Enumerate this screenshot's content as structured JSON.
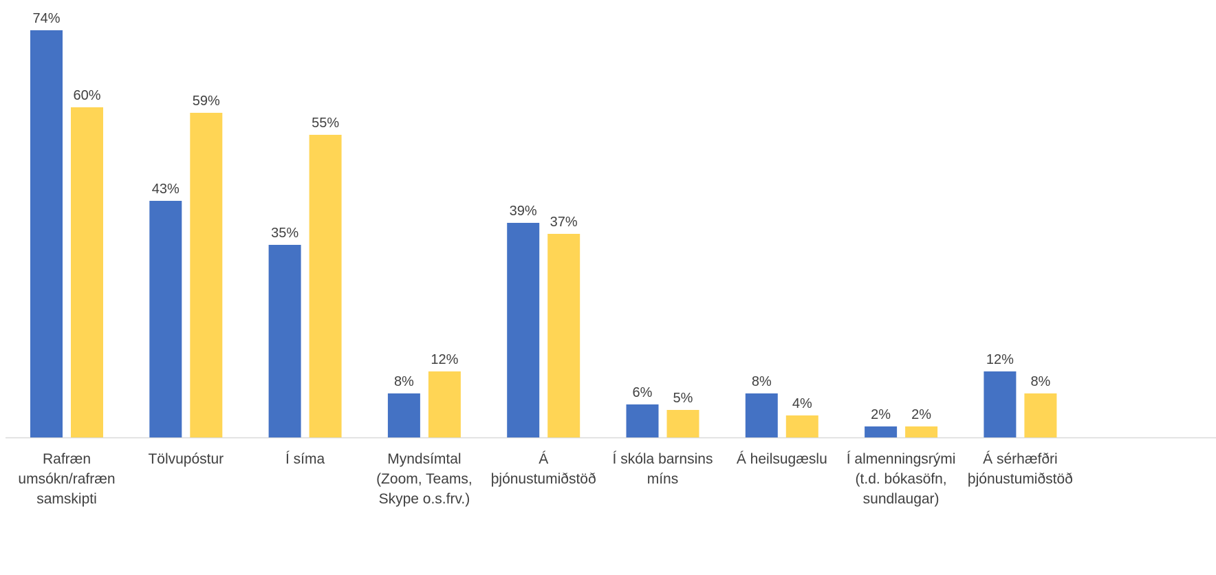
{
  "chart_data": {
    "type": "bar",
    "categories": [
      [
        "Rafræn",
        "umsókn/rafræn",
        "samskipti"
      ],
      [
        "Tölvupóstur"
      ],
      [
        "Í síma"
      ],
      [
        "Myndsímtal",
        "(Zoom, Teams,",
        "Skype o.s.frv.)"
      ],
      [
        "Á",
        "þjónustumiðstöð"
      ],
      [
        "Í skóla barnsins",
        "míns"
      ],
      [
        "Á heilsugæslu"
      ],
      [
        "Í almenningsrými",
        "(t.d. bókasöfn,",
        "sundlaugar)"
      ],
      [
        "Á sérhæfðri",
        "þjónustumiðstöð"
      ]
    ],
    "series": [
      {
        "color": "#4472C4",
        "values": [
          74,
          43,
          35,
          8,
          39,
          6,
          8,
          2,
          12
        ],
        "labels": [
          "74%",
          "43%",
          "35%",
          "8%",
          "39%",
          "6%",
          "8%",
          "2%",
          "12%"
        ]
      },
      {
        "color": "#FFD555",
        "values": [
          60,
          59,
          55,
          12,
          37,
          5,
          4,
          2,
          8
        ],
        "labels": [
          "60%",
          "59%",
          "55%",
          "12%",
          "37%",
          "5%",
          "4%",
          "2%",
          "8%"
        ]
      }
    ],
    "ylim": [
      0,
      74
    ],
    "grid": false,
    "legend": "none",
    "axis_color": "#D9D9D9"
  }
}
